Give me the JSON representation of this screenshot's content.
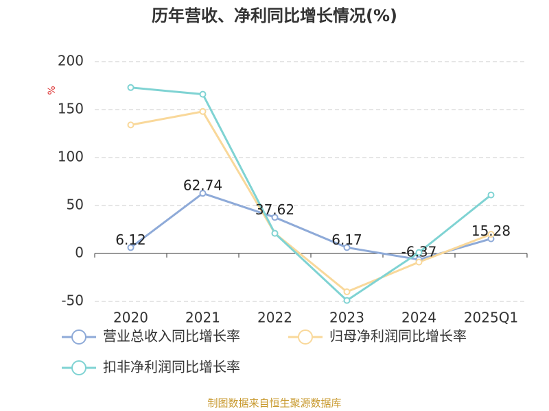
{
  "chart_data": {
    "type": "line",
    "title": "历年营收、净利同比增长情况(%)",
    "y_axis_label": "%",
    "source": "制图数据来自恒生聚源数据库",
    "categories": [
      "2020",
      "2021",
      "2022",
      "2023",
      "2024",
      "2025Q1"
    ],
    "series": [
      {
        "name": "营业总收入同比增长率",
        "color": "#8eaad8",
        "values": [
          6.12,
          62.74,
          37.62,
          6.17,
          -6.37,
          15.28
        ],
        "show_labels": true
      },
      {
        "name": "归母净利润同比增长率",
        "color": "#f9d89a",
        "values": [
          134,
          148,
          21,
          -40,
          -9,
          20
        ]
      },
      {
        "name": "扣非净利润同比增长率",
        "color": "#7fd3d3",
        "values": [
          173,
          166,
          21,
          -49,
          1,
          61
        ]
      }
    ],
    "ylim": [
      -50,
      200
    ],
    "yticks": [
      -50,
      0,
      50,
      100,
      150,
      200
    ],
    "grid": true
  }
}
